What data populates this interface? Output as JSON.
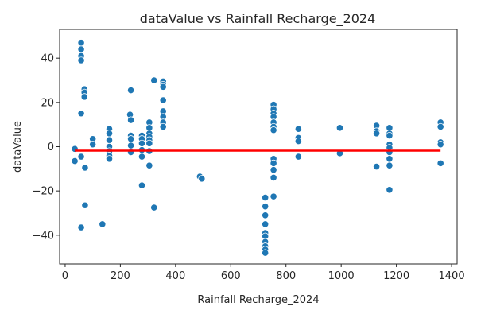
{
  "chart_data": {
    "type": "scatter",
    "title": "dataValue vs Rainfall Recharge_2024",
    "xlabel": "Rainfall Recharge_2024",
    "ylabel": "dataValue",
    "xlim": [
      -20,
      1420
    ],
    "ylim": [
      -53,
      53
    ],
    "xticks": [
      0,
      200,
      400,
      600,
      800,
      1000,
      1200,
      1400
    ],
    "yticks": [
      -40,
      -20,
      0,
      20,
      40
    ],
    "grid": false,
    "legend": "none",
    "point_color": "#1f77b4",
    "trend_color": "#ff0000",
    "series": [
      {
        "points": [
          [
            35,
            -1
          ],
          [
            35,
            -6.5
          ],
          [
            58,
            47
          ],
          [
            58,
            44
          ],
          [
            58,
            41
          ],
          [
            58,
            39
          ],
          [
            58,
            15
          ],
          [
            58,
            -4.5
          ],
          [
            58,
            -36.5
          ],
          [
            70,
            26
          ],
          [
            70,
            24.5
          ],
          [
            70,
            22.5
          ],
          [
            72,
            -9.5
          ],
          [
            72,
            -26.5
          ],
          [
            100,
            3.5
          ],
          [
            100,
            1
          ],
          [
            135,
            -35
          ],
          [
            160,
            8
          ],
          [
            160,
            6
          ],
          [
            160,
            3
          ],
          [
            160,
            0
          ],
          [
            160,
            -2
          ],
          [
            160,
            -4
          ],
          [
            160,
            -5.5
          ],
          [
            235,
            14.5
          ],
          [
            238,
            25.5
          ],
          [
            238,
            12
          ],
          [
            238,
            5
          ],
          [
            238,
            3.5
          ],
          [
            238,
            0.5
          ],
          [
            238,
            -2.5
          ],
          [
            278,
            5
          ],
          [
            278,
            3.5
          ],
          [
            278,
            1.5
          ],
          [
            278,
            -1.5
          ],
          [
            278,
            -4.5
          ],
          [
            278,
            -17.5
          ],
          [
            305,
            11
          ],
          [
            305,
            8.5
          ],
          [
            305,
            6
          ],
          [
            305,
            4.5
          ],
          [
            305,
            3
          ],
          [
            305,
            1.5
          ],
          [
            305,
            -2
          ],
          [
            305,
            -8.5
          ],
          [
            322,
            30
          ],
          [
            322,
            -27.5
          ],
          [
            355,
            29.5
          ],
          [
            355,
            28
          ],
          [
            355,
            27
          ],
          [
            355,
            21
          ],
          [
            355,
            16
          ],
          [
            355,
            13.5
          ],
          [
            355,
            11
          ],
          [
            355,
            9
          ],
          [
            488,
            -13.5
          ],
          [
            495,
            -14.5
          ],
          [
            725,
            -23
          ],
          [
            725,
            -27
          ],
          [
            725,
            -31
          ],
          [
            725,
            -35
          ],
          [
            725,
            -39
          ],
          [
            725,
            -40.5
          ],
          [
            725,
            -43
          ],
          [
            725,
            -45
          ],
          [
            725,
            -46.5
          ],
          [
            725,
            -48
          ],
          [
            755,
            19
          ],
          [
            755,
            17
          ],
          [
            755,
            15
          ],
          [
            755,
            13.5
          ],
          [
            755,
            11
          ],
          [
            755,
            9
          ],
          [
            755,
            7.5
          ],
          [
            755,
            -5.5
          ],
          [
            755,
            -7.5
          ],
          [
            755,
            -10.5
          ],
          [
            755,
            -14
          ],
          [
            755,
            -22.5
          ],
          [
            845,
            8
          ],
          [
            845,
            4
          ],
          [
            845,
            2.5
          ],
          [
            845,
            -4.5
          ],
          [
            995,
            8.5
          ],
          [
            995,
            -3
          ],
          [
            1128,
            9.5
          ],
          [
            1128,
            7
          ],
          [
            1128,
            6
          ],
          [
            1128,
            -9
          ],
          [
            1175,
            8.5
          ],
          [
            1175,
            6
          ],
          [
            1175,
            5
          ],
          [
            1175,
            1
          ],
          [
            1175,
            -0.5
          ],
          [
            1175,
            -2.5
          ],
          [
            1175,
            -5.5
          ],
          [
            1175,
            -8.5
          ],
          [
            1175,
            -19.5
          ],
          [
            1360,
            11
          ],
          [
            1360,
            9
          ],
          [
            1360,
            2
          ],
          [
            1360,
            1
          ],
          [
            1360,
            -7.5
          ]
        ]
      }
    ],
    "trend_line": {
      "x": [
        35,
        1360
      ],
      "y": [
        -1.8,
        -1.8
      ]
    }
  }
}
